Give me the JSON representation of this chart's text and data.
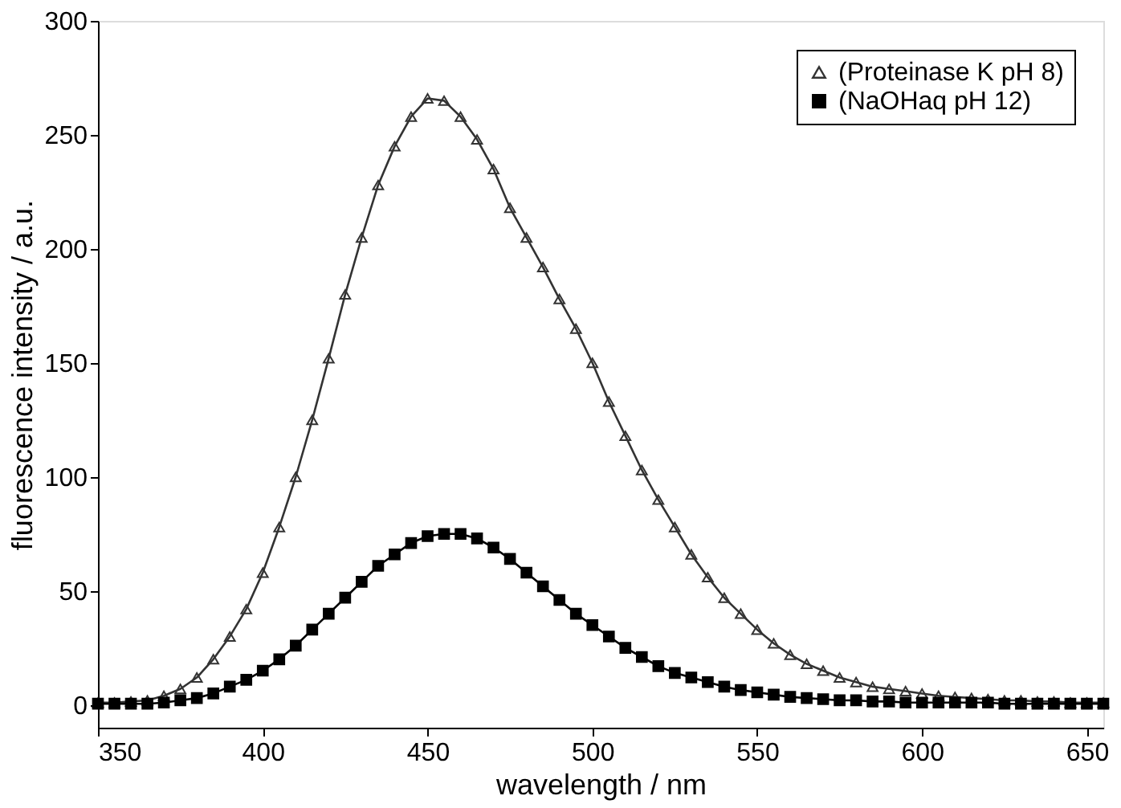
{
  "chart_data": {
    "type": "line",
    "xlabel": "wavelength / nm",
    "ylabel": "fluorescence intensity / a.u.",
    "x": [
      350,
      355,
      360,
      365,
      370,
      375,
      380,
      385,
      390,
      395,
      400,
      405,
      410,
      415,
      420,
      425,
      430,
      435,
      440,
      445,
      450,
      455,
      460,
      465,
      470,
      475,
      480,
      485,
      490,
      495,
      500,
      505,
      510,
      515,
      520,
      525,
      530,
      535,
      540,
      545,
      550,
      555,
      560,
      565,
      570,
      575,
      580,
      585,
      590,
      595,
      600,
      605,
      610,
      615,
      620,
      625,
      630,
      635,
      640,
      645,
      650,
      655
    ],
    "series": [
      {
        "name": "(Proteinase K pH 8)",
        "color": "#333333",
        "marker": "triangle",
        "values": [
          1,
          1,
          1.5,
          2,
          4,
          7,
          12,
          20,
          30,
          42,
          58,
          78,
          100,
          125,
          152,
          180,
          205,
          228,
          245,
          258,
          266,
          265,
          258,
          248,
          235,
          218,
          205,
          192,
          178,
          165,
          150,
          133,
          118,
          103,
          90,
          78,
          66,
          56,
          47,
          40,
          33,
          27,
          22,
          18,
          15,
          12,
          10,
          8,
          7,
          6,
          5,
          4,
          3.5,
          3,
          2.5,
          2,
          2,
          1.5,
          1.5,
          1,
          1,
          1
        ]
      },
      {
        "name": "(NaOHaq pH 12)",
        "color": "#000000",
        "marker": "square",
        "values": [
          0.5,
          0.5,
          0.5,
          0.5,
          1,
          2,
          3,
          5,
          8,
          11,
          15,
          20,
          26,
          33,
          40,
          47,
          54,
          61,
          66,
          71,
          74,
          75,
          75,
          73,
          69,
          64,
          58,
          52,
          46,
          40,
          35,
          30,
          25,
          21,
          17,
          14,
          12,
          10,
          8,
          6.5,
          5.5,
          4.5,
          3.5,
          3,
          2.5,
          2,
          2,
          1.5,
          1.5,
          1,
          1,
          1,
          1,
          1,
          1,
          0.5,
          0.5,
          0.5,
          0.5,
          0.5,
          0.5,
          0.5
        ]
      }
    ],
    "xlim": [
      350,
      655
    ],
    "xticks": [
      350,
      400,
      450,
      500,
      550,
      600,
      650
    ],
    "ylim": [
      -10,
      300
    ],
    "yticks": [
      0,
      50,
      100,
      150,
      200,
      250,
      300
    ],
    "grid": false,
    "legend": "top right",
    "line_style": "solid"
  }
}
